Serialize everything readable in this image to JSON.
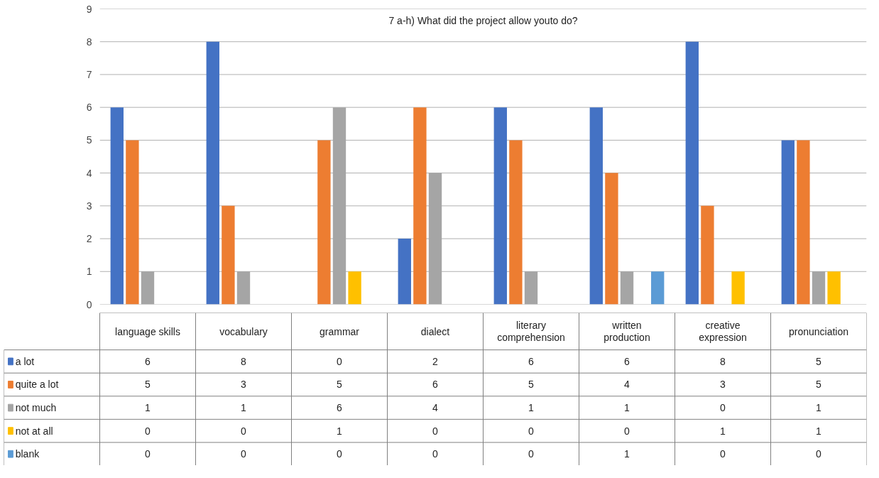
{
  "chart_data": {
    "type": "bar",
    "title": "7 a-h) What did the project allow youto do?",
    "categories": [
      "language skills",
      "vocabulary",
      "grammar",
      "dialect",
      "literary comprehension",
      "written production",
      "creative expression",
      "pronunciation"
    ],
    "series": [
      {
        "name": "a lot",
        "color": "#4472c4",
        "values": [
          6,
          8,
          0,
          2,
          6,
          6,
          8,
          5
        ]
      },
      {
        "name": "quite a lot",
        "color": "#ed7d31",
        "values": [
          5,
          3,
          5,
          6,
          5,
          4,
          3,
          5
        ]
      },
      {
        "name": "not much",
        "color": "#a5a5a5",
        "values": [
          1,
          1,
          6,
          4,
          1,
          1,
          0,
          1
        ]
      },
      {
        "name": "not at all",
        "color": "#ffc000",
        "values": [
          0,
          0,
          1,
          0,
          0,
          0,
          1,
          1
        ]
      },
      {
        "name": "blank",
        "color": "#5b9bd5",
        "values": [
          0,
          0,
          0,
          0,
          0,
          1,
          0,
          0
        ]
      }
    ],
    "ylim": [
      0,
      9
    ],
    "yticks": [
      0,
      1,
      2,
      3,
      4,
      5,
      6,
      7,
      8,
      9
    ],
    "grid": "y",
    "legend": "bottom",
    "data_labels": true
  }
}
